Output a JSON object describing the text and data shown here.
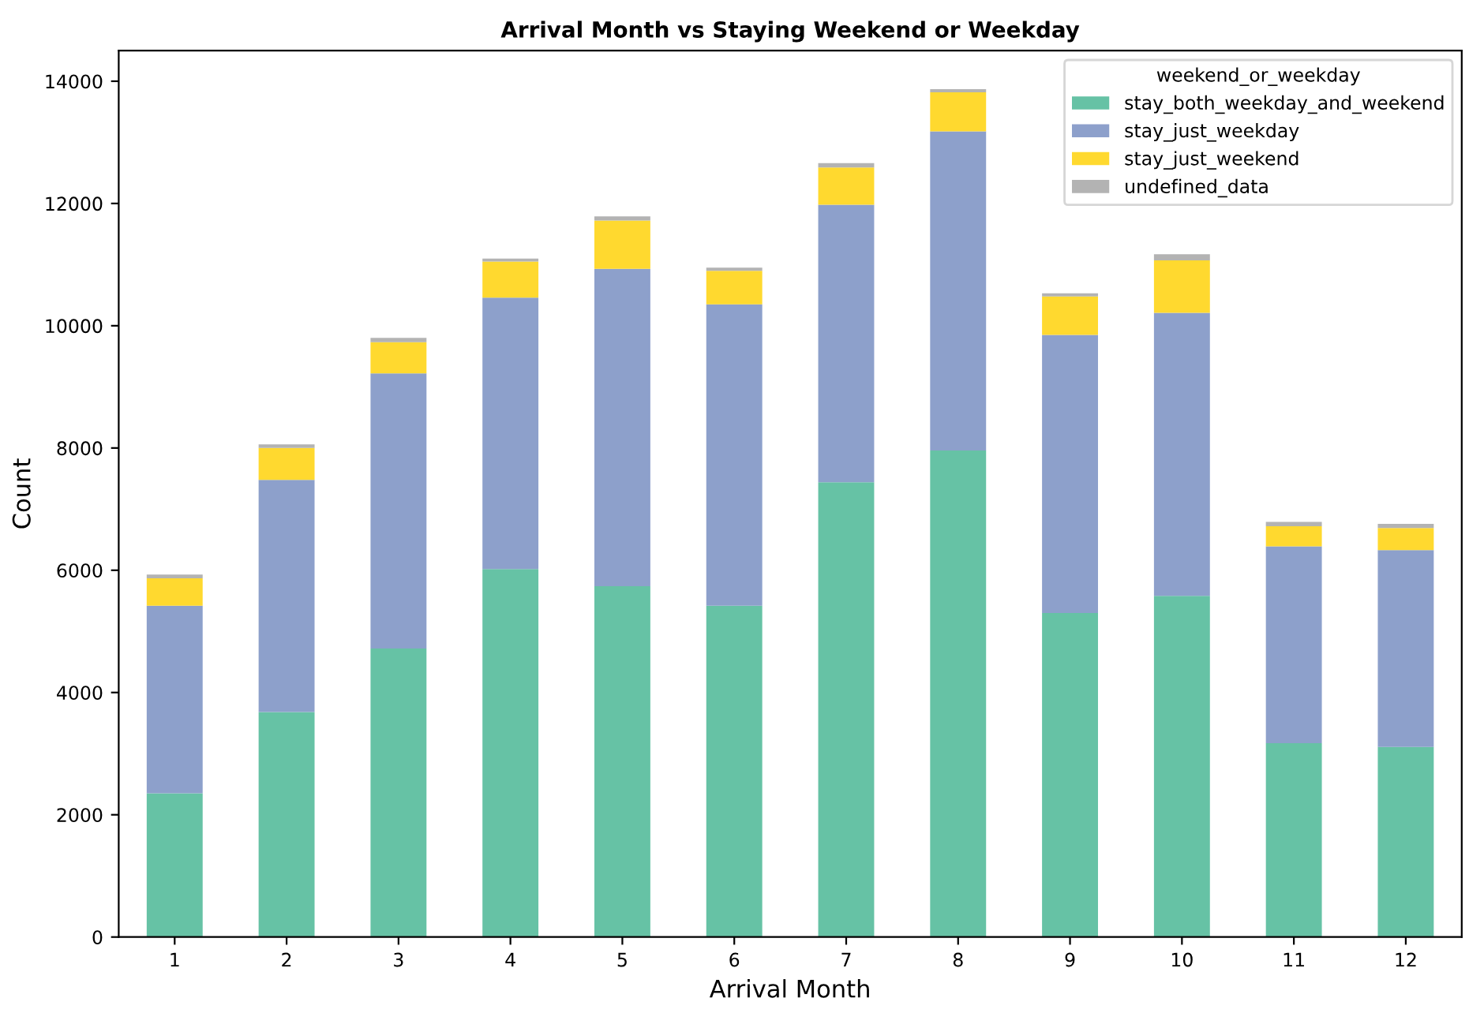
{
  "chart_data": {
    "type": "bar",
    "title": "Arrival Month vs Staying Weekend or Weekday",
    "xlabel": "Arrival Month",
    "ylabel": "Count",
    "legend_title": "weekend_or_weekday",
    "categories": [
      "1",
      "2",
      "3",
      "4",
      "5",
      "6",
      "7",
      "8",
      "9",
      "10",
      "11",
      "12"
    ],
    "stacked": true,
    "legend": "top right",
    "grid": false,
    "ylim": [
      0,
      14500
    ],
    "yticks": [
      0,
      2000,
      4000,
      6000,
      8000,
      10000,
      12000,
      14000
    ],
    "series": [
      {
        "name": "stay_both_weekday_and_weekend",
        "color": "#66c2a5",
        "values": [
          2350,
          3680,
          4720,
          6020,
          5740,
          5420,
          7440,
          7960,
          5300,
          5580,
          3170,
          3110
        ]
      },
      {
        "name": "stay_just_weekday",
        "color": "#8da0cb",
        "values": [
          3070,
          3800,
          4500,
          4440,
          5190,
          4930,
          4540,
          5220,
          4550,
          4630,
          3220,
          3220
        ]
      },
      {
        "name": "stay_just_weekend",
        "color": "#ffd92f",
        "values": [
          450,
          520,
          510,
          590,
          790,
          550,
          610,
          640,
          630,
          860,
          330,
          360
        ]
      },
      {
        "name": "undefined_data",
        "color": "#b3b3b3",
        "values": [
          60,
          60,
          70,
          50,
          70,
          50,
          70,
          50,
          50,
          100,
          70,
          70
        ]
      }
    ]
  }
}
